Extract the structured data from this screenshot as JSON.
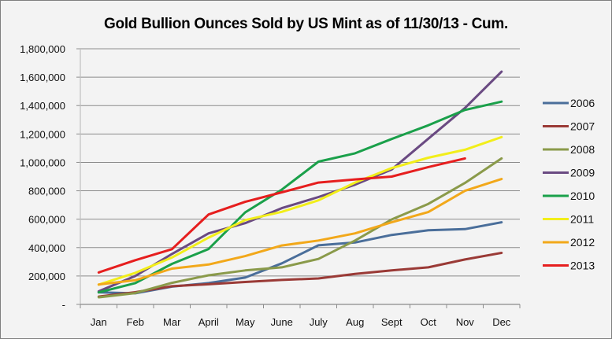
{
  "chart_data": {
    "type": "line",
    "title": "Gold Bullion Ounces Sold by US Mint as of 11/30/13 - Cum.",
    "xlabel": "",
    "ylabel": "",
    "categories": [
      "Jan",
      "Feb",
      "Mar",
      "April",
      "May",
      "June",
      "July",
      "Aug",
      "Sept",
      "Oct",
      "Nov",
      "Dec"
    ],
    "ylim": [
      0,
      1800000
    ],
    "yticks": [
      0,
      200000,
      400000,
      600000,
      800000,
      1000000,
      1200000,
      1400000,
      1600000,
      1800000
    ],
    "ytick_labels": [
      "-",
      "200,000",
      "400,000",
      "600,000",
      "800,000",
      "1,000,000",
      "1,200,000",
      "1,400,000",
      "1,600,000",
      "1,800,000"
    ],
    "grid": "horizontal",
    "legend_position": "right",
    "series": [
      {
        "name": "2006",
        "color": "#4a6e9a",
        "values": [
          85000,
          78000,
          125000,
          150000,
          189000,
          289000,
          416000,
          436000,
          489000,
          522000,
          530000,
          578000
        ]
      },
      {
        "name": "2007",
        "color": "#9a3a36",
        "values": [
          55000,
          86000,
          128000,
          142000,
          158000,
          172000,
          183000,
          215000,
          240000,
          261000,
          316000,
          363000
        ]
      },
      {
        "name": "2008",
        "color": "#8a9a4a",
        "values": [
          50000,
          80000,
          152000,
          205000,
          239000,
          261000,
          320000,
          450000,
          598000,
          708000,
          855000,
          1028000
        ]
      },
      {
        "name": "2009",
        "color": "#6a4a82",
        "values": [
          92000,
          200000,
          355000,
          500000,
          572000,
          678000,
          756000,
          843000,
          950000,
          1167000,
          1383000,
          1639000
        ]
      },
      {
        "name": "2010",
        "color": "#1aa04a",
        "values": [
          85000,
          150000,
          285000,
          390000,
          648000,
          808000,
          1005000,
          1064000,
          1165000,
          1261000,
          1369000,
          1428000
        ]
      },
      {
        "name": "2011",
        "color": "#f2ee1a",
        "values": [
          139000,
          222000,
          330000,
          470000,
          594000,
          652000,
          733000,
          858000,
          960000,
          1033000,
          1089000,
          1178000
        ]
      },
      {
        "name": "2012",
        "color": "#f2a81a",
        "values": [
          140000,
          170000,
          252000,
          281000,
          340000,
          415000,
          450000,
          500000,
          578000,
          650000,
          800000,
          883000
        ]
      },
      {
        "name": "2013",
        "color": "#e61e1e",
        "values": [
          225000,
          311000,
          389000,
          633000,
          722000,
          789000,
          858000,
          880000,
          900000,
          967000,
          1028000,
          null
        ]
      }
    ]
  }
}
